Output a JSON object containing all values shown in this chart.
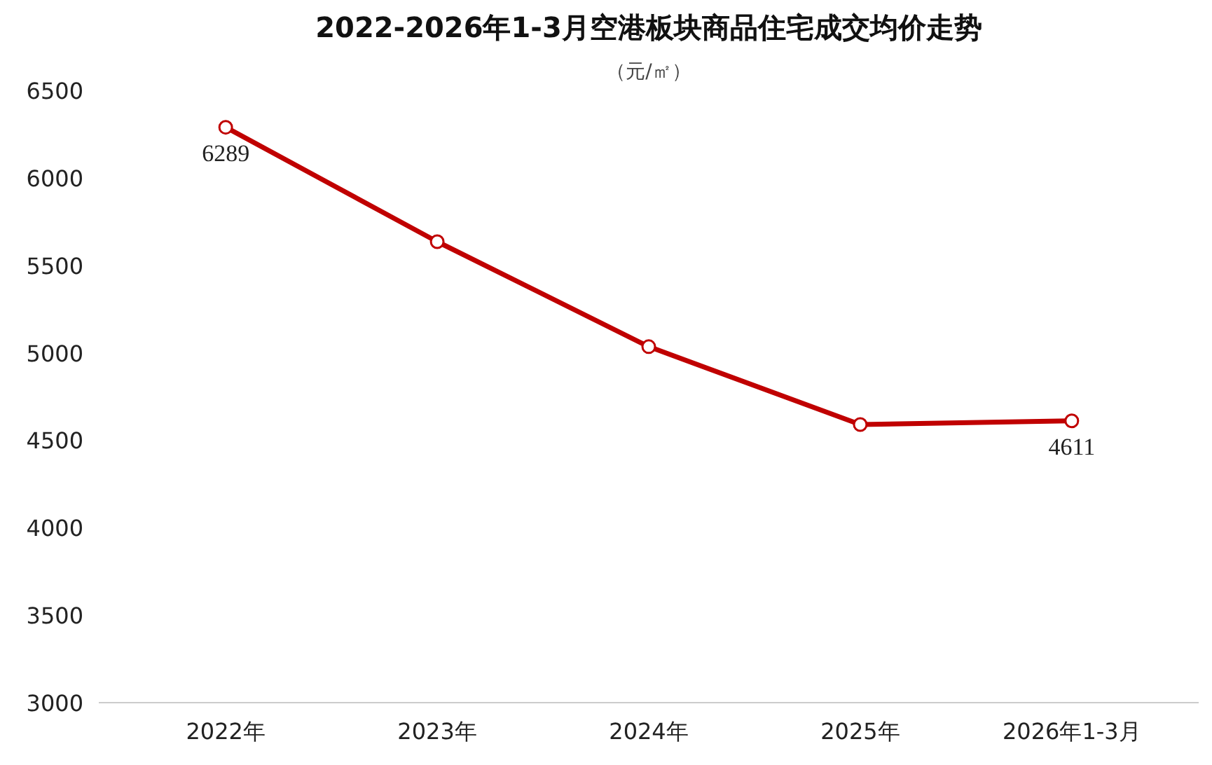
{
  "chart_data": {
    "type": "line",
    "title": "2022-2026年1-3月空港板块商品住宅成交均价走势",
    "subtitle": "（元/㎡）",
    "categories": [
      "2022年",
      "2023年",
      "2024年",
      "2025年",
      "2026年1-3月"
    ],
    "series": [
      {
        "color": "#c00000",
        "values": [
          6289,
          5635,
          5035,
          4590,
          4611
        ],
        "value_labels": [
          "6289",
          null,
          null,
          null,
          "4611"
        ]
      }
    ],
    "ylim": [
      3000,
      6500
    ],
    "yticks": [
      3000,
      3500,
      4000,
      4500,
      5000,
      5500,
      6000,
      6500
    ],
    "marker": "circle",
    "line_style": "solid"
  }
}
